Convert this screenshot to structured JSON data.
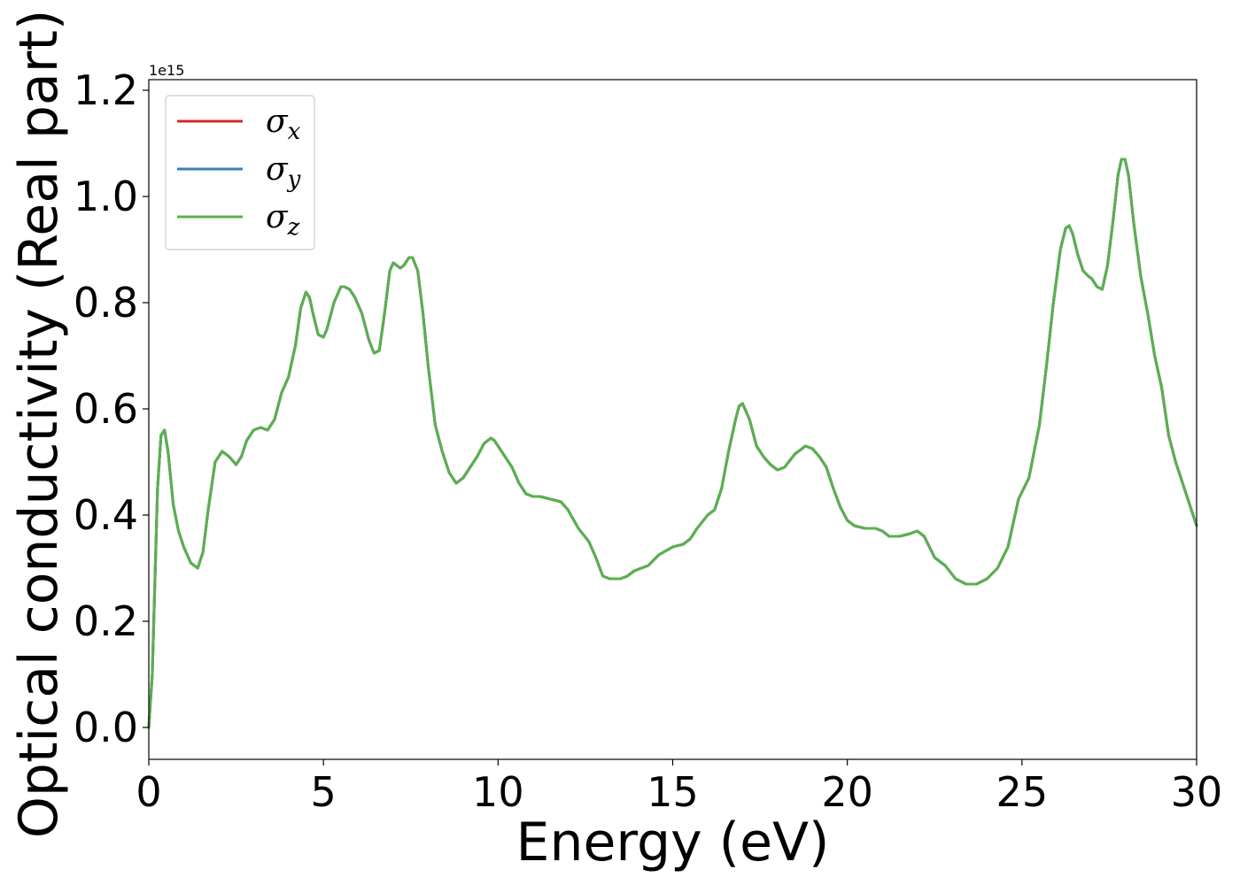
{
  "chart_data": {
    "type": "line",
    "title": "",
    "xlabel": "Energy (eV)",
    "ylabel": "Optical conductivity (Real part)",
    "y_offset_label": "1e15",
    "xlim": [
      0,
      30
    ],
    "ylim": [
      -0.06,
      1.22
    ],
    "xticks": [
      0,
      5,
      10,
      15,
      20,
      25,
      30
    ],
    "xtick_labels": [
      "0",
      "5",
      "10",
      "15",
      "20",
      "25",
      "30"
    ],
    "yticks": [
      0.0,
      0.2,
      0.4,
      0.6,
      0.8,
      1.0,
      1.2
    ],
    "ytick_labels": [
      "0.0",
      "0.2",
      "0.4",
      "0.6",
      "0.8",
      "1.0",
      "1.2"
    ],
    "grid": false,
    "legend_position": "top-left",
    "x": [
      0,
      0.1,
      0.25,
      0.35,
      0.45,
      0.55,
      0.7,
      0.85,
      1.0,
      1.2,
      1.4,
      1.55,
      1.7,
      1.9,
      2.1,
      2.3,
      2.5,
      2.65,
      2.8,
      3.0,
      3.2,
      3.4,
      3.6,
      3.8,
      4.0,
      4.2,
      4.35,
      4.5,
      4.6,
      4.7,
      4.85,
      5.0,
      5.1,
      5.3,
      5.5,
      5.6,
      5.75,
      5.9,
      6.1,
      6.3,
      6.45,
      6.6,
      6.75,
      6.9,
      7.0,
      7.1,
      7.2,
      7.3,
      7.45,
      7.55,
      7.7,
      7.85,
      8.0,
      8.2,
      8.4,
      8.6,
      8.8,
      9.0,
      9.2,
      9.4,
      9.6,
      9.8,
      9.9,
      10.0,
      10.2,
      10.4,
      10.6,
      10.8,
      11.0,
      11.2,
      11.5,
      11.8,
      12.0,
      12.3,
      12.6,
      12.8,
      13.0,
      13.2,
      13.5,
      13.7,
      13.9,
      14.1,
      14.3,
      14.6,
      15.0,
      15.3,
      15.5,
      15.7,
      16.0,
      16.2,
      16.4,
      16.6,
      16.8,
      16.9,
      17.0,
      17.2,
      17.4,
      17.6,
      17.8,
      18.0,
      18.2,
      18.5,
      18.8,
      19.0,
      19.2,
      19.4,
      19.6,
      19.8,
      20.0,
      20.2,
      20.5,
      20.8,
      21.0,
      21.2,
      21.5,
      21.8,
      22.0,
      22.2,
      22.5,
      22.8,
      23.1,
      23.4,
      23.7,
      24.0,
      24.3,
      24.6,
      24.9,
      25.2,
      25.5,
      25.7,
      25.9,
      26.1,
      26.25,
      26.35,
      26.45,
      26.6,
      26.75,
      26.9,
      27.0,
      27.15,
      27.3,
      27.45,
      27.6,
      27.75,
      27.85,
      27.95,
      28.05,
      28.2,
      28.4,
      28.6,
      28.8,
      29.0,
      29.2,
      29.4,
      29.6,
      29.8,
      30.0
    ],
    "series": [
      {
        "name": "σ_x",
        "label_base": "σ",
        "label_sub": "x",
        "color": "#d62728",
        "values": [
          0.0,
          0.1,
          0.45,
          0.55,
          0.56,
          0.52,
          0.42,
          0.37,
          0.34,
          0.31,
          0.3,
          0.33,
          0.41,
          0.5,
          0.52,
          0.51,
          0.495,
          0.51,
          0.54,
          0.56,
          0.565,
          0.56,
          0.58,
          0.63,
          0.66,
          0.72,
          0.79,
          0.82,
          0.81,
          0.78,
          0.74,
          0.735,
          0.75,
          0.8,
          0.83,
          0.83,
          0.825,
          0.81,
          0.78,
          0.73,
          0.705,
          0.71,
          0.78,
          0.86,
          0.875,
          0.87,
          0.865,
          0.87,
          0.885,
          0.885,
          0.86,
          0.78,
          0.68,
          0.57,
          0.52,
          0.48,
          0.46,
          0.47,
          0.49,
          0.51,
          0.535,
          0.545,
          0.54,
          0.53,
          0.51,
          0.49,
          0.46,
          0.44,
          0.435,
          0.435,
          0.43,
          0.425,
          0.41,
          0.375,
          0.35,
          0.32,
          0.285,
          0.28,
          0.28,
          0.285,
          0.295,
          0.3,
          0.305,
          0.325,
          0.34,
          0.345,
          0.355,
          0.375,
          0.4,
          0.41,
          0.45,
          0.52,
          0.58,
          0.605,
          0.61,
          0.58,
          0.53,
          0.51,
          0.495,
          0.485,
          0.49,
          0.515,
          0.53,
          0.525,
          0.51,
          0.49,
          0.45,
          0.415,
          0.39,
          0.38,
          0.375,
          0.375,
          0.37,
          0.36,
          0.36,
          0.365,
          0.37,
          0.36,
          0.32,
          0.305,
          0.28,
          0.27,
          0.27,
          0.28,
          0.3,
          0.34,
          0.43,
          0.47,
          0.57,
          0.68,
          0.8,
          0.9,
          0.94,
          0.945,
          0.93,
          0.89,
          0.86,
          0.85,
          0.845,
          0.83,
          0.825,
          0.87,
          0.95,
          1.04,
          1.07,
          1.07,
          1.04,
          0.95,
          0.85,
          0.78,
          0.7,
          0.64,
          0.55,
          0.5,
          0.46,
          0.42,
          0.38
        ]
      },
      {
        "name": "σ_y",
        "label_base": "σ",
        "label_sub": "y",
        "color": "#3b7dbf",
        "values": [
          0.0,
          0.1,
          0.45,
          0.55,
          0.56,
          0.52,
          0.42,
          0.37,
          0.34,
          0.31,
          0.3,
          0.33,
          0.41,
          0.5,
          0.52,
          0.51,
          0.495,
          0.51,
          0.54,
          0.56,
          0.565,
          0.56,
          0.58,
          0.63,
          0.66,
          0.72,
          0.79,
          0.82,
          0.81,
          0.78,
          0.74,
          0.735,
          0.75,
          0.8,
          0.83,
          0.83,
          0.825,
          0.81,
          0.78,
          0.73,
          0.705,
          0.71,
          0.78,
          0.86,
          0.875,
          0.87,
          0.865,
          0.87,
          0.885,
          0.885,
          0.86,
          0.78,
          0.68,
          0.57,
          0.52,
          0.48,
          0.46,
          0.47,
          0.49,
          0.51,
          0.535,
          0.545,
          0.54,
          0.53,
          0.51,
          0.49,
          0.46,
          0.44,
          0.435,
          0.435,
          0.43,
          0.425,
          0.41,
          0.375,
          0.35,
          0.32,
          0.285,
          0.28,
          0.28,
          0.285,
          0.295,
          0.3,
          0.305,
          0.325,
          0.34,
          0.345,
          0.355,
          0.375,
          0.4,
          0.41,
          0.45,
          0.52,
          0.58,
          0.605,
          0.61,
          0.58,
          0.53,
          0.51,
          0.495,
          0.485,
          0.49,
          0.515,
          0.53,
          0.525,
          0.51,
          0.49,
          0.45,
          0.415,
          0.39,
          0.38,
          0.375,
          0.375,
          0.37,
          0.36,
          0.36,
          0.365,
          0.37,
          0.36,
          0.32,
          0.305,
          0.28,
          0.27,
          0.27,
          0.28,
          0.3,
          0.34,
          0.43,
          0.47,
          0.57,
          0.68,
          0.8,
          0.9,
          0.94,
          0.945,
          0.93,
          0.89,
          0.86,
          0.85,
          0.845,
          0.83,
          0.825,
          0.87,
          0.95,
          1.04,
          1.07,
          1.07,
          1.04,
          0.95,
          0.85,
          0.78,
          0.7,
          0.64,
          0.55,
          0.5,
          0.46,
          0.42,
          0.38
        ]
      },
      {
        "name": "σ_z",
        "label_base": "σ",
        "label_sub": "z",
        "color": "#5ab04d",
        "values": [
          0.0,
          0.1,
          0.45,
          0.55,
          0.56,
          0.52,
          0.42,
          0.37,
          0.34,
          0.31,
          0.3,
          0.33,
          0.41,
          0.5,
          0.52,
          0.51,
          0.495,
          0.51,
          0.54,
          0.56,
          0.565,
          0.56,
          0.58,
          0.63,
          0.66,
          0.72,
          0.79,
          0.82,
          0.81,
          0.78,
          0.74,
          0.735,
          0.75,
          0.8,
          0.83,
          0.83,
          0.825,
          0.81,
          0.78,
          0.73,
          0.705,
          0.71,
          0.78,
          0.86,
          0.875,
          0.87,
          0.865,
          0.87,
          0.885,
          0.885,
          0.86,
          0.78,
          0.68,
          0.57,
          0.52,
          0.48,
          0.46,
          0.47,
          0.49,
          0.51,
          0.535,
          0.545,
          0.54,
          0.53,
          0.51,
          0.49,
          0.46,
          0.44,
          0.435,
          0.435,
          0.43,
          0.425,
          0.41,
          0.375,
          0.35,
          0.32,
          0.285,
          0.28,
          0.28,
          0.285,
          0.295,
          0.3,
          0.305,
          0.325,
          0.34,
          0.345,
          0.355,
          0.375,
          0.4,
          0.41,
          0.45,
          0.52,
          0.58,
          0.605,
          0.61,
          0.58,
          0.53,
          0.51,
          0.495,
          0.485,
          0.49,
          0.515,
          0.53,
          0.525,
          0.51,
          0.49,
          0.45,
          0.415,
          0.39,
          0.38,
          0.375,
          0.375,
          0.37,
          0.36,
          0.36,
          0.365,
          0.37,
          0.36,
          0.32,
          0.305,
          0.28,
          0.27,
          0.27,
          0.28,
          0.3,
          0.34,
          0.43,
          0.47,
          0.57,
          0.68,
          0.8,
          0.9,
          0.94,
          0.945,
          0.93,
          0.89,
          0.86,
          0.85,
          0.845,
          0.83,
          0.825,
          0.87,
          0.95,
          1.04,
          1.07,
          1.07,
          1.04,
          0.95,
          0.85,
          0.78,
          0.7,
          0.64,
          0.55,
          0.5,
          0.46,
          0.42,
          0.38
        ]
      }
    ]
  }
}
